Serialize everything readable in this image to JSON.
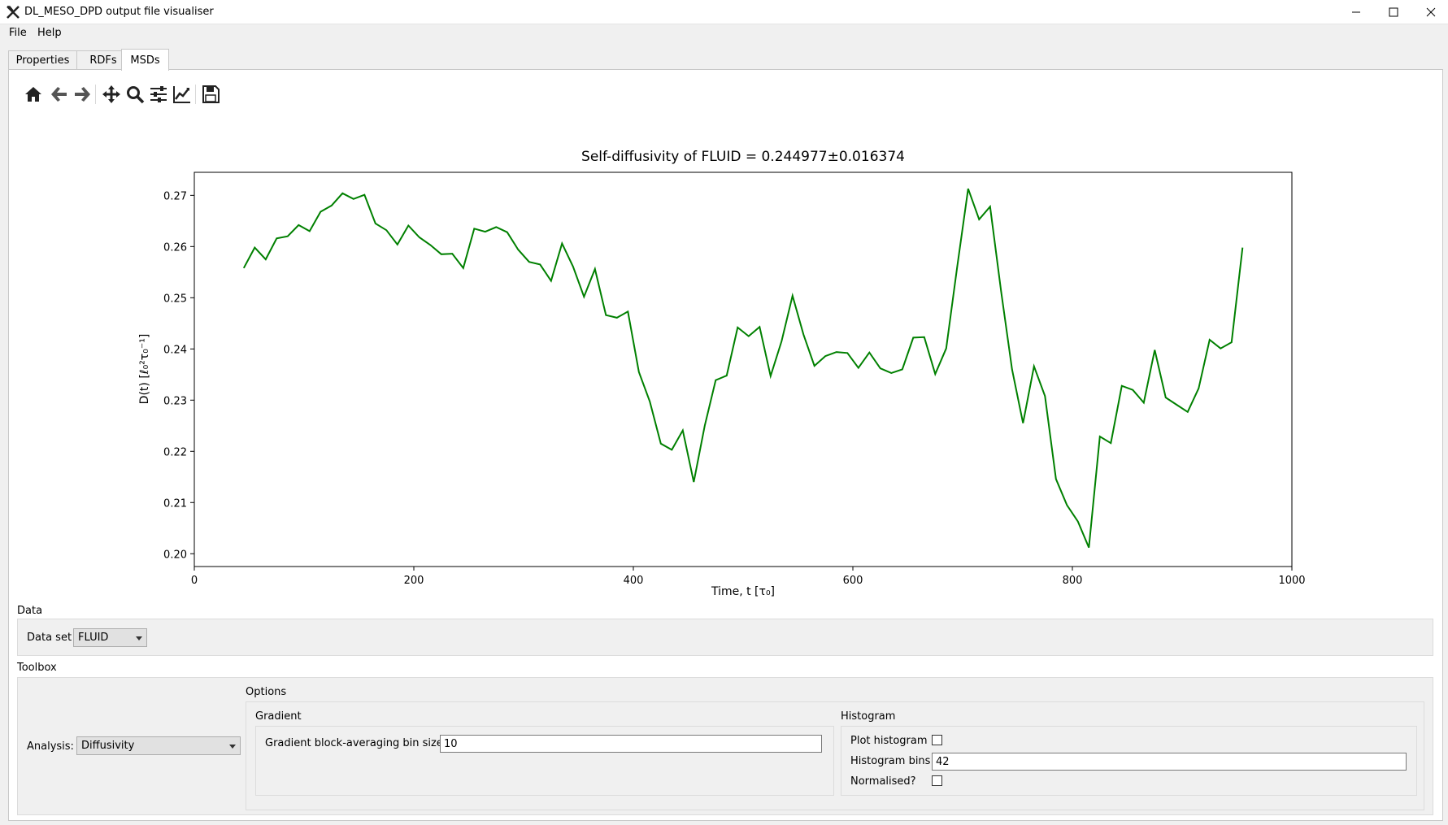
{
  "window": {
    "title": "DL_MESO_DPD output file visualiser"
  },
  "menu": {
    "file": "File",
    "help": "Help"
  },
  "tabs": [
    {
      "label": "Properties"
    },
    {
      "label": "RDFs"
    },
    {
      "label": "MSDs",
      "active": true
    }
  ],
  "toolbar": {
    "icons": [
      "home-icon",
      "back-arrow-icon",
      "forward-arrow-icon",
      "pan-icon",
      "zoom-icon",
      "configure-subplots-icon",
      "edit-axes-icon",
      "save-icon"
    ]
  },
  "chart_data": {
    "type": "line",
    "title": "Self-diffusivity of FLUID = 0.244977±0.016374",
    "xlabel": "Time, t [τ₀]",
    "ylabel": "D(t) [ℓ₀²τ₀⁻¹]",
    "xlim": [
      0,
      1000
    ],
    "ylim": [
      0.1975,
      0.2745
    ],
    "xticks": [
      "0",
      "200",
      "400",
      "600",
      "800",
      "1000"
    ],
    "yticks": [
      "0.20",
      "0.21",
      "0.22",
      "0.23",
      "0.24",
      "0.25",
      "0.26",
      "0.27"
    ],
    "grid": false,
    "color": "#008000",
    "series": [
      {
        "x": [
          45,
          55,
          65,
          75,
          85,
          95,
          105,
          115,
          125,
          135,
          145,
          155,
          165,
          175,
          185,
          195,
          205,
          215,
          225,
          235,
          245,
          255,
          265,
          275,
          285,
          295,
          305,
          315,
          325,
          335,
          345,
          355,
          365,
          375,
          385,
          395,
          405,
          415,
          425,
          435,
          445,
          455,
          465,
          475,
          485,
          495,
          505,
          515,
          525,
          535,
          545,
          555,
          565,
          575,
          585,
          595,
          605,
          615,
          625,
          635,
          645,
          655,
          665,
          675,
          685,
          695,
          705,
          715,
          725,
          735,
          745,
          755,
          765,
          775,
          785,
          795,
          805,
          815,
          825,
          835,
          845,
          855,
          865,
          875,
          885,
          895,
          905,
          915,
          925,
          935,
          945,
          955
        ],
        "values": [
          0.2558,
          0.2598,
          0.2575,
          0.2616,
          0.262,
          0.2642,
          0.263,
          0.2668,
          0.268,
          0.2704,
          0.2693,
          0.2701,
          0.2645,
          0.2632,
          0.2604,
          0.2641,
          0.2618,
          0.2603,
          0.2585,
          0.2586,
          0.2558,
          0.2635,
          0.2629,
          0.2638,
          0.2628,
          0.2594,
          0.257,
          0.2565,
          0.2533,
          0.2606,
          0.2561,
          0.2502,
          0.2556,
          0.2466,
          0.2461,
          0.2473,
          0.2355,
          0.2297,
          0.2215,
          0.2203,
          0.2241,
          0.214,
          0.225,
          0.2339,
          0.2348,
          0.2442,
          0.2425,
          0.2443,
          0.2347,
          0.2415,
          0.2504,
          0.2428,
          0.2367,
          0.2386,
          0.2394,
          0.2392,
          0.2363,
          0.2393,
          0.2362,
          0.2353,
          0.236,
          0.2422,
          0.2423,
          0.2351,
          0.2401,
          0.256,
          0.2713,
          0.2653,
          0.2678,
          0.2513,
          0.236,
          0.2255,
          0.2366,
          0.2308,
          0.2146,
          0.2095,
          0.2063,
          0.2012,
          0.2229,
          0.2216,
          0.2328,
          0.232,
          0.2295,
          0.2398,
          0.2305,
          0.2291,
          0.2277,
          0.2323,
          0.2418,
          0.2401,
          0.2413,
          0.2598
        ]
      }
    ]
  },
  "data_section": {
    "label": "Data",
    "dataset_label": "Data set",
    "dataset_value": "FLUID"
  },
  "toolbox": {
    "label": "Toolbox",
    "analysis_label": "Analysis:",
    "analysis_value": "Diffusivity",
    "options_label": "Options",
    "gradient": {
      "label": "Gradient",
      "bin_size_label": "Gradient block-averaging bin size:",
      "bin_size_value": "10"
    },
    "histogram": {
      "label": "Histogram",
      "plot_label": "Plot histogram",
      "plot_checked": false,
      "bins_label": "Histogram bins",
      "bins_value": "42",
      "normalised_label": "Normalised?",
      "normalised_checked": false
    }
  }
}
